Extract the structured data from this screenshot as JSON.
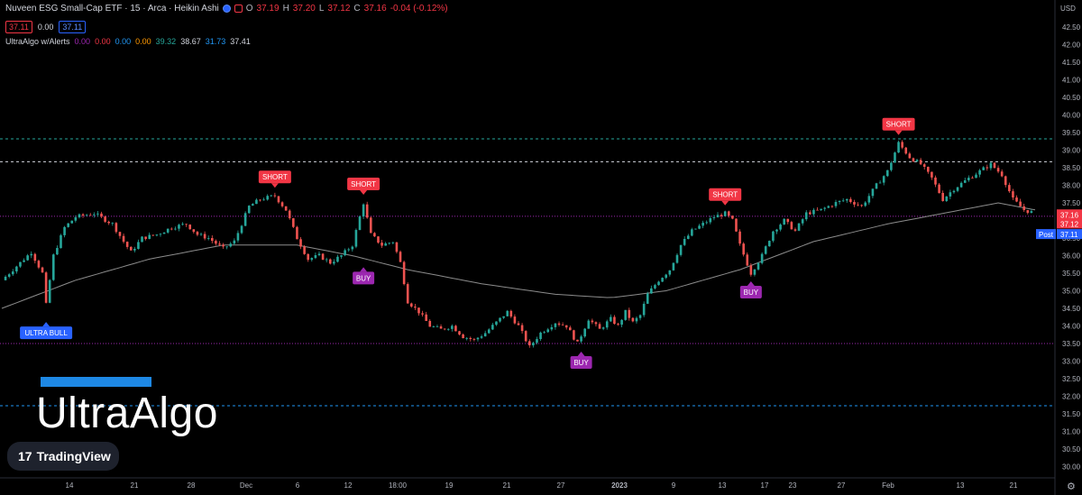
{
  "header": {
    "title": "Nuveen ESG Small-Cap ETF · 15 · Arca · Heikin Ashi",
    "o_label": "O",
    "o_value": "37.19",
    "h_label": "H",
    "h_value": "37.20",
    "l_label": "L",
    "l_value": "37.12",
    "c_label": "C",
    "c_value": "37.16",
    "change": "-0.04 (-0.12%)",
    "bid": "37.11",
    "spread": "0.00",
    "ask": "37.11"
  },
  "indicator": {
    "name": "UltraAlgo w/Alerts",
    "values": [
      {
        "text": "0.00",
        "color": "#9c27b0"
      },
      {
        "text": "0.00",
        "color": "#f23645"
      },
      {
        "text": "0.00",
        "color": "#2196f3"
      },
      {
        "text": "0.00",
        "color": "#ff9800"
      },
      {
        "text": "39.32",
        "color": "#26a69a"
      },
      {
        "text": "38.67",
        "color": "#d1d4dc"
      },
      {
        "text": "31.73",
        "color": "#2196f3"
      },
      {
        "text": "37.41",
        "color": "#d1d4dc"
      }
    ]
  },
  "branding": {
    "logo_text": "UltraAlgo",
    "tv_name": "TradingView",
    "tv_mark": "17"
  },
  "axis": {
    "currency": "USD",
    "gear": "⚙"
  },
  "chart_data": {
    "type": "candlestick",
    "y_ticks": [
      "42.50",
      "42.00",
      "41.50",
      "41.00",
      "40.50",
      "40.00",
      "39.50",
      "39.00",
      "38.50",
      "38.00",
      "37.50",
      "37.00",
      "36.50",
      "36.00",
      "35.50",
      "35.00",
      "34.50",
      "34.00",
      "33.50",
      "33.00",
      "32.50",
      "32.00",
      "31.50",
      "31.00",
      "30.50",
      "30.00"
    ],
    "ylim": [
      29.8,
      42.8
    ],
    "x_ticks": [
      "14",
      "21",
      "28",
      "Dec",
      "6",
      "12",
      "18:00",
      "19",
      "21",
      "27",
      "2023",
      "9",
      "13",
      "17",
      "23",
      "27",
      "Feb",
      "13",
      "21"
    ],
    "price_path": [
      [
        0,
        35.3
      ],
      [
        4,
        35.7
      ],
      [
        8,
        36.1
      ],
      [
        11,
        35.5
      ],
      [
        12,
        34.6
      ],
      [
        14,
        36.0
      ],
      [
        17,
        36.8
      ],
      [
        20,
        37.1
      ],
      [
        25,
        37.2
      ],
      [
        30,
        36.9
      ],
      [
        33,
        36.4
      ],
      [
        35,
        36.1
      ],
      [
        38,
        36.5
      ],
      [
        42,
        36.6
      ],
      [
        46,
        36.8
      ],
      [
        50,
        36.9
      ],
      [
        53,
        36.6
      ],
      [
        56,
        36.5
      ],
      [
        60,
        36.2
      ],
      [
        63,
        36.4
      ],
      [
        65,
        36.9
      ],
      [
        67,
        37.4
      ],
      [
        70,
        37.6
      ],
      [
        74,
        37.7
      ],
      [
        77,
        37.3
      ],
      [
        80,
        36.5
      ],
      [
        83,
        35.9
      ],
      [
        86,
        36.0
      ],
      [
        89,
        35.8
      ],
      [
        92,
        36.0
      ],
      [
        95,
        36.3
      ],
      [
        98,
        37.5
      ],
      [
        100,
        36.6
      ],
      [
        103,
        36.3
      ],
      [
        106,
        36.4
      ],
      [
        108,
        35.8
      ],
      [
        110,
        34.7
      ],
      [
        113,
        34.4
      ],
      [
        116,
        34.0
      ],
      [
        119,
        33.9
      ],
      [
        122,
        34.0
      ],
      [
        125,
        33.7
      ],
      [
        128,
        33.6
      ],
      [
        131,
        33.8
      ],
      [
        134,
        34.1
      ],
      [
        137,
        34.4
      ],
      [
        140,
        34.0
      ],
      [
        143,
        33.4
      ],
      [
        146,
        33.8
      ],
      [
        150,
        34.1
      ],
      [
        153,
        34.0
      ],
      [
        156,
        33.5
      ],
      [
        159,
        34.2
      ],
      [
        162,
        33.9
      ],
      [
        165,
        34.2
      ],
      [
        167,
        34.0
      ],
      [
        169,
        34.4
      ],
      [
        171,
        34.1
      ],
      [
        173,
        34.3
      ],
      [
        175,
        34.9
      ],
      [
        178,
        35.3
      ],
      [
        181,
        35.6
      ],
      [
        184,
        36.3
      ],
      [
        187,
        36.7
      ],
      [
        190,
        36.9
      ],
      [
        193,
        37.1
      ],
      [
        196,
        37.2
      ],
      [
        198,
        37.0
      ],
      [
        200,
        36.3
      ],
      [
        203,
        35.5
      ],
      [
        206,
        36.0
      ],
      [
        209,
        36.7
      ],
      [
        212,
        37.0
      ],
      [
        215,
        36.7
      ],
      [
        218,
        37.2
      ],
      [
        222,
        37.3
      ],
      [
        226,
        37.5
      ],
      [
        229,
        37.6
      ],
      [
        233,
        37.4
      ],
      [
        237,
        38.0
      ],
      [
        240,
        38.4
      ],
      [
        243,
        39.2
      ],
      [
        246,
        38.8
      ],
      [
        249,
        38.6
      ],
      [
        252,
        38.2
      ],
      [
        255,
        37.6
      ],
      [
        258,
        37.9
      ],
      [
        262,
        38.2
      ],
      [
        265,
        38.4
      ],
      [
        268,
        38.6
      ],
      [
        271,
        38.3
      ],
      [
        274,
        37.6
      ],
      [
        277,
        37.3
      ],
      [
        280,
        37.2
      ]
    ],
    "ma_path": [
      [
        0,
        34.5
      ],
      [
        20,
        35.3
      ],
      [
        40,
        35.9
      ],
      [
        60,
        36.3
      ],
      [
        80,
        36.3
      ],
      [
        95,
        36.0
      ],
      [
        110,
        35.6
      ],
      [
        130,
        35.2
      ],
      [
        150,
        34.9
      ],
      [
        165,
        34.8
      ],
      [
        180,
        35.0
      ],
      [
        200,
        35.6
      ],
      [
        220,
        36.4
      ],
      [
        240,
        36.9
      ],
      [
        260,
        37.3
      ],
      [
        270,
        37.5
      ],
      [
        280,
        37.3
      ]
    ],
    "h_lines": [
      {
        "y": 39.32,
        "color": "#26a69a",
        "style": "dashed"
      },
      {
        "y": 38.67,
        "color": "#d1d4dc",
        "style": "dashed"
      },
      {
        "y": 37.12,
        "color": "#9c27b0",
        "style": "dotted"
      },
      {
        "y": 33.5,
        "color": "#9c27b0",
        "style": "dotted"
      },
      {
        "y": 31.73,
        "color": "#2196f3",
        "style": "dashed"
      }
    ],
    "signals": [
      {
        "text": "ULTRA BULL",
        "kind": "bull",
        "bar": 12,
        "y": 34.6
      },
      {
        "text": "SHORT",
        "kind": "short",
        "bar": 74,
        "y": 37.7
      },
      {
        "text": "SHORT",
        "kind": "short",
        "bar": 98,
        "y": 37.5
      },
      {
        "text": "BUY",
        "kind": "buy",
        "bar": 98,
        "y": 35.9
      },
      {
        "text": "BUY",
        "kind": "buy",
        "bar": 157,
        "y": 33.5
      },
      {
        "text": "SHORT",
        "kind": "short",
        "bar": 196,
        "y": 37.2
      },
      {
        "text": "BUY",
        "kind": "buy",
        "bar": 203,
        "y": 35.5
      },
      {
        "text": "SHORT",
        "kind": "short",
        "bar": 243,
        "y": 39.2
      }
    ],
    "price_labels": [
      {
        "text": "37.16",
        "y": 37.16,
        "color": "#f23645"
      },
      {
        "text": "37.12",
        "y": 36.9,
        "color": "#f23645"
      },
      {
        "text": "37.11",
        "y": 36.6,
        "color": "#2962ff"
      }
    ],
    "post_label": "Post"
  }
}
